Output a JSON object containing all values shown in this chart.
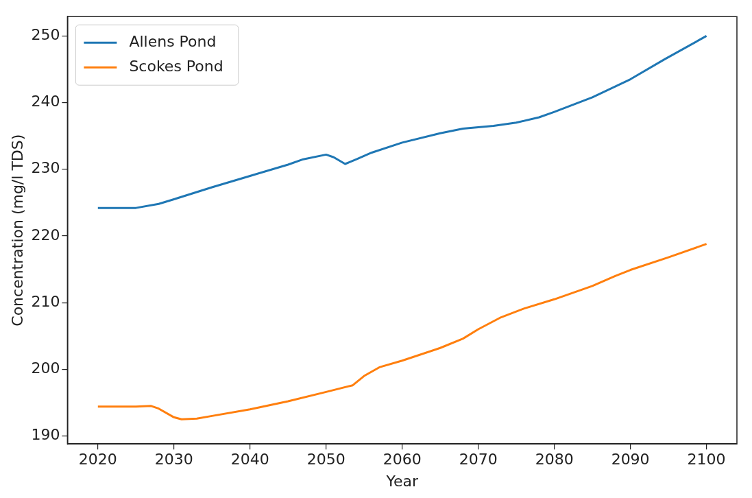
{
  "chart_data": {
    "type": "line",
    "xlabel": "Year",
    "ylabel": "Concentration (mg/l TDS)",
    "xlim": [
      2016,
      2104
    ],
    "ylim": [
      188.8,
      252.9
    ],
    "xticks": [
      2020,
      2030,
      2040,
      2050,
      2060,
      2070,
      2080,
      2090,
      2100
    ],
    "yticks": [
      190,
      200,
      210,
      220,
      230,
      240,
      250
    ],
    "grid": false,
    "legend": "top left",
    "series": [
      {
        "name": "Allens Pond",
        "color": "#1f77b4",
        "x": [
          2020,
          2025,
          2028,
          2030,
          2035,
          2040,
          2045,
          2047,
          2050,
          2051,
          2052.5,
          2054,
          2056,
          2060,
          2065,
          2068,
          2072,
          2075,
          2078,
          2080,
          2085,
          2090,
          2094.5,
          2100
        ],
        "values": [
          224.2,
          224.2,
          224.8,
          225.5,
          227.3,
          229.0,
          230.7,
          231.5,
          232.2,
          231.8,
          230.8,
          231.5,
          232.5,
          234.0,
          235.4,
          236.1,
          236.5,
          237.0,
          237.8,
          238.6,
          240.8,
          243.5,
          246.5,
          250.0
        ]
      },
      {
        "name": "Scokes Pond",
        "color": "#ff7f0e",
        "x": [
          2020,
          2025,
          2027,
          2028,
          2030,
          2031,
          2033,
          2035,
          2040,
          2045,
          2050,
          2053.5,
          2055,
          2057,
          2060,
          2065,
          2068,
          2070,
          2073,
          2076,
          2080,
          2085,
          2088,
          2090,
          2095,
          2100
        ],
        "values": [
          194.4,
          194.4,
          194.5,
          194.1,
          192.8,
          192.5,
          192.6,
          193.0,
          194.0,
          195.2,
          196.6,
          197.6,
          199.0,
          200.3,
          201.3,
          203.2,
          204.6,
          206.0,
          207.8,
          209.1,
          210.5,
          212.5,
          214.0,
          214.9,
          216.8,
          218.8
        ]
      }
    ]
  }
}
